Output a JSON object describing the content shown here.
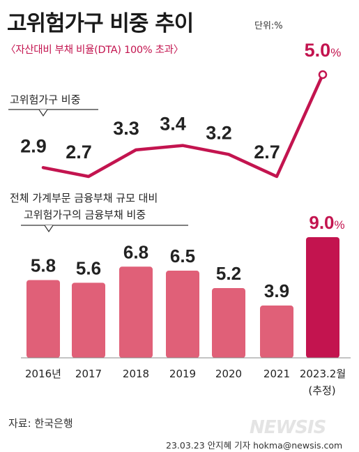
{
  "title": "고위험가구 비중 추이",
  "unit": "단위:%",
  "subtitle": "〈자산대비 부채 비율(DTA) 100% 초과〉",
  "source": "자료:  한국은행",
  "credit": "23.03.23 안지혜 기자 hokma@newsis.com",
  "logo": "NEWSIS",
  "colors": {
    "accent": "#c3144f",
    "bar": "#e06078",
    "line": "#c3144f"
  },
  "chart_data": [
    {
      "type": "line",
      "title": "고위험가구 비중",
      "categories": [
        "2016년",
        "2017",
        "2018",
        "2019",
        "2020",
        "2021",
        "2023.2월 (추정)"
      ],
      "values": [
        2.9,
        2.7,
        3.3,
        3.4,
        3.2,
        2.7,
        5.0
      ],
      "value_labels": [
        "2.9",
        "2.7",
        "3.3",
        "3.4",
        "3.2",
        "2.7",
        "5.0%"
      ],
      "highlight_last": true
    },
    {
      "type": "bar",
      "title": "전체 가계부문 금융부채 규모 대비",
      "subtitle": "고위험가구의 금융부채 비중",
      "categories": [
        "2016년",
        "2017",
        "2018",
        "2019",
        "2020",
        "2021",
        "2023.2월"
      ],
      "category_note": "(추정)",
      "values": [
        5.8,
        5.6,
        6.8,
        6.5,
        5.2,
        3.9,
        9.0
      ],
      "value_labels": [
        "5.8",
        "5.6",
        "6.8",
        "6.5",
        "5.2",
        "3.9",
        "9.0%"
      ],
      "highlight_last": true
    }
  ]
}
